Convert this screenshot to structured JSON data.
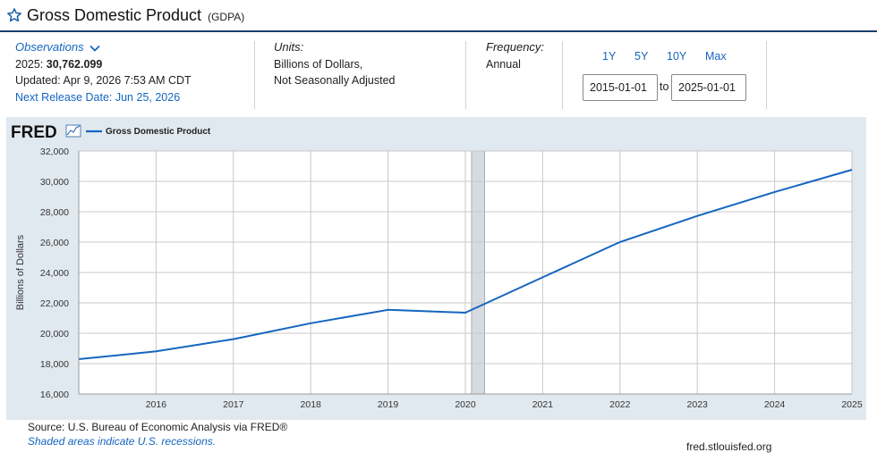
{
  "header": {
    "title": "Gross Domestic Product",
    "series_id": "(GDPA)",
    "star_icon": "star-outline-icon"
  },
  "observations": {
    "link_label": "Observations",
    "latest_period": "2025:",
    "latest_value": "30,762.099",
    "updated": "Updated: Apr 9, 2026 7:53 AM CDT",
    "next_release": "Next Release Date: Jun 25, 2026"
  },
  "units": {
    "heading": "Units:",
    "line1": "Billions of Dollars,",
    "line2": "Not Seasonally Adjusted"
  },
  "frequency": {
    "heading": "Frequency:",
    "value": "Annual"
  },
  "date_range": {
    "buttons": [
      "1Y",
      "5Y",
      "10Y",
      "Max"
    ],
    "start": "2015-01-01",
    "to_label": "to",
    "end": "2025-01-01"
  },
  "chart_data": {
    "type": "line",
    "logo_text": "FRED",
    "ylabel": "Billions of Dollars",
    "ylim": [
      16000,
      32000
    ],
    "yticks": [
      16000,
      18000,
      20000,
      22000,
      24000,
      26000,
      28000,
      30000,
      32000
    ],
    "ytick_labels": [
      "16,000",
      "18,000",
      "20,000",
      "22,000",
      "24,000",
      "26,000",
      "28,000",
      "30,000",
      "32,000"
    ],
    "xlim": [
      2015,
      2025
    ],
    "xticks": [
      2016,
      2017,
      2018,
      2019,
      2020,
      2021,
      2022,
      2023,
      2024,
      2025
    ],
    "xtick_labels": [
      "2016",
      "2017",
      "2018",
      "2019",
      "2020",
      "2021",
      "2022",
      "2023",
      "2024",
      "2025"
    ],
    "grid": true,
    "legend_position": "top-left",
    "recessions": [
      [
        2020.08,
        2020.25
      ]
    ],
    "series": [
      {
        "name": "Gross Domestic Product",
        "color": "#1565c0",
        "x": [
          2015,
          2016,
          2017,
          2018,
          2019,
          2020,
          2021,
          2022,
          2023,
          2024,
          2025
        ],
        "values": [
          18295,
          18805,
          19612,
          20657,
          21540,
          21354,
          23681,
          26007,
          27721,
          29298,
          30762.099
        ]
      }
    ]
  },
  "footer": {
    "source": "Source: U.S. Bureau of Economic Analysis via FRED®",
    "recession_note": "Shaded areas indicate U.S. recessions.",
    "url": "fred.stlouisfed.org"
  }
}
